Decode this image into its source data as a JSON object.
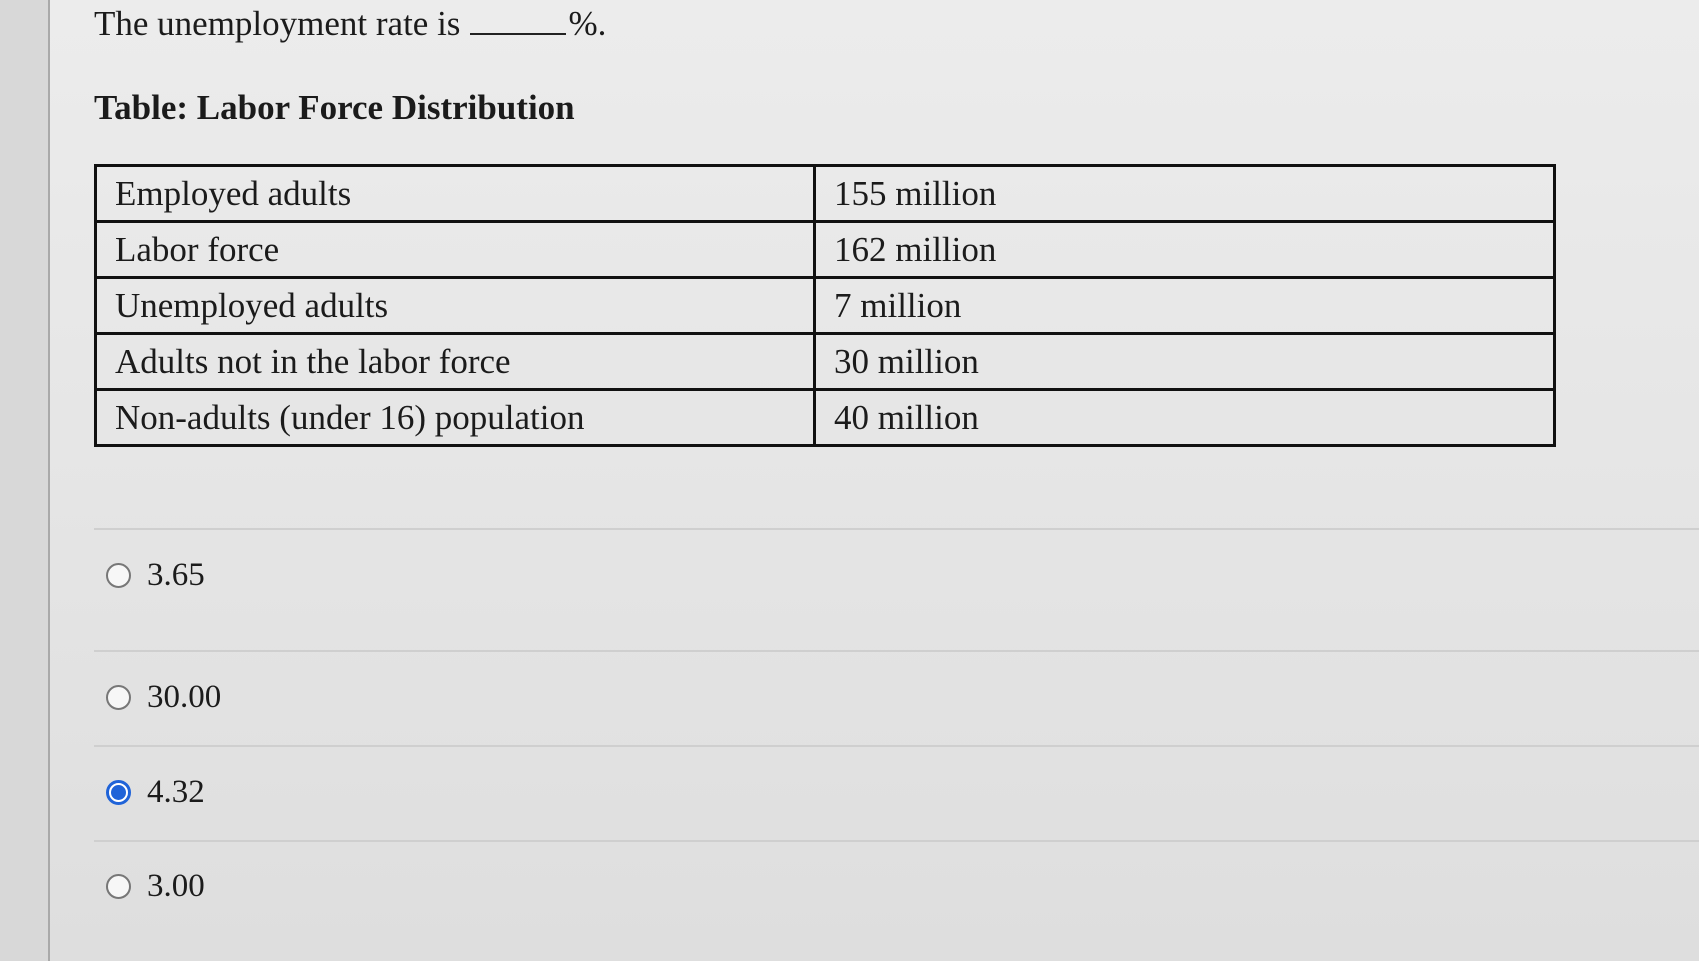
{
  "question": {
    "prefix": "The unemployment rate is",
    "suffix": "%."
  },
  "table": {
    "title": "Table: Labor Force Distribution",
    "rows": [
      {
        "label": "Employed adults",
        "value": "155 million"
      },
      {
        "label": "Labor force",
        "value": "162 million"
      },
      {
        "label": "Unemployed adults",
        "value": "7 million"
      },
      {
        "label": "Adults not in the labor force",
        "value": "30 million"
      },
      {
        "label": "Non-adults (under 16) population",
        "value": "40 million"
      }
    ]
  },
  "options": [
    {
      "label": "3.65",
      "selected": false
    },
    {
      "label": "30.00",
      "selected": false
    },
    {
      "label": "4.32",
      "selected": true
    },
    {
      "label": "3.00",
      "selected": false
    }
  ],
  "colors": {
    "selected": "#1f63d8",
    "border": "#111111",
    "text": "#1b1b1b"
  }
}
